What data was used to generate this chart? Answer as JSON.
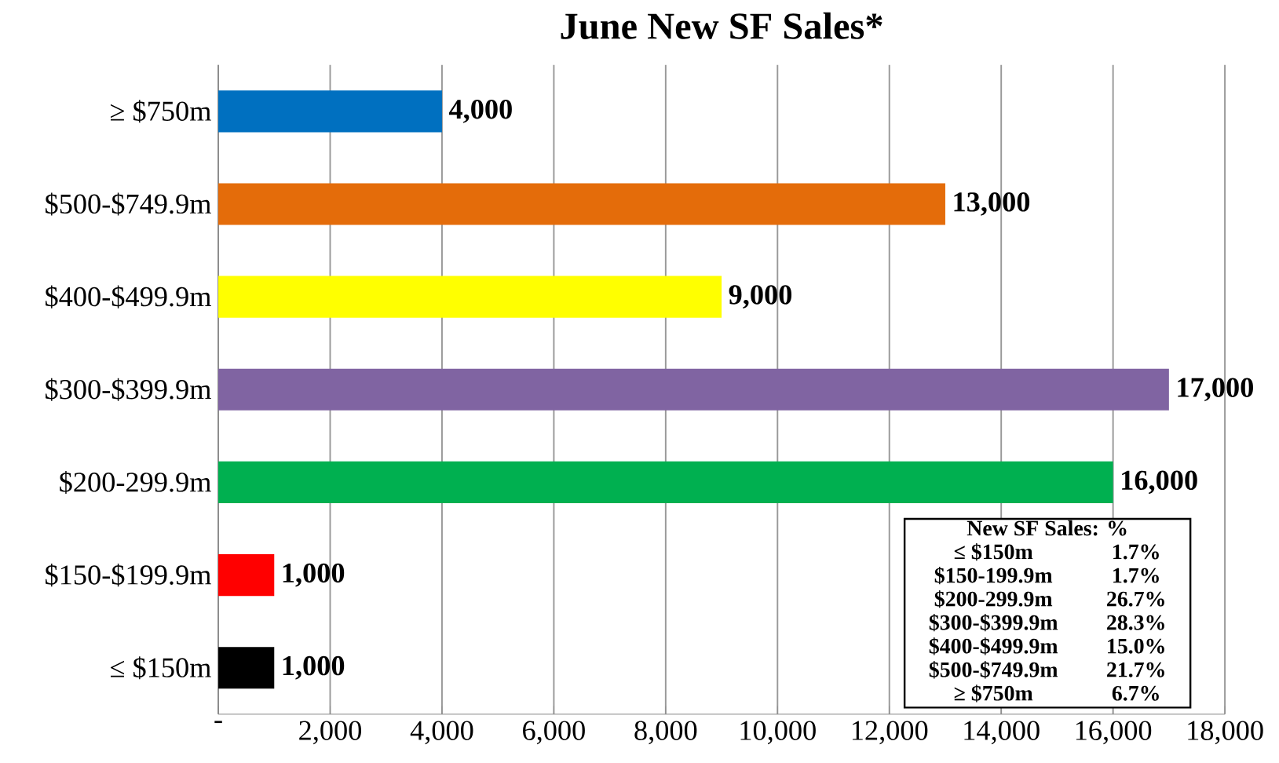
{
  "chart_data": {
    "type": "bar",
    "orientation": "horizontal",
    "title": "June New SF Sales*",
    "categories": [
      "≥ $750m",
      "$500-$749.9m",
      "$400-$499.9m",
      "$300-$399.9m",
      "$200-299.9m",
      "$150-$199.9m",
      "≤ $150m"
    ],
    "values": [
      4000,
      13000,
      9000,
      17000,
      16000,
      1000,
      1000
    ],
    "colors": [
      "#0070c0",
      "#e46c0a",
      "#ffff00",
      "#8064a2",
      "#00b050",
      "#ff0000",
      "#000000"
    ],
    "value_labels": [
      "4,000",
      "13,000",
      "9,000",
      "17,000",
      "16,000",
      "1,000",
      "1,000"
    ],
    "xlim": [
      0,
      18000
    ],
    "xticks": [
      {
        "value": 0,
        "label": "-"
      },
      {
        "value": 2000,
        "label": "2,000"
      },
      {
        "value": 4000,
        "label": "4,000"
      },
      {
        "value": 6000,
        "label": "6,000"
      },
      {
        "value": 8000,
        "label": "8,000"
      },
      {
        "value": 10000,
        "label": "10,000"
      },
      {
        "value": 12000,
        "label": "12,000"
      },
      {
        "value": 14000,
        "label": "14,000"
      },
      {
        "value": 16000,
        "label": "16,000"
      },
      {
        "value": 18000,
        "label": "18,000"
      }
    ],
    "grid": "x",
    "annotations": [
      "New SF Sales: %",
      "≤ $150m",
      "1.7%",
      "$150-199.9m",
      "1.7%",
      "$200-299.9m",
      "26.7%",
      "$300-$399.9m",
      "28.3%",
      "$400-$499.9m",
      "15.0%",
      "$500-$749.9m",
      "21.7%",
      "≥ $750m",
      "6.7%"
    ]
  }
}
